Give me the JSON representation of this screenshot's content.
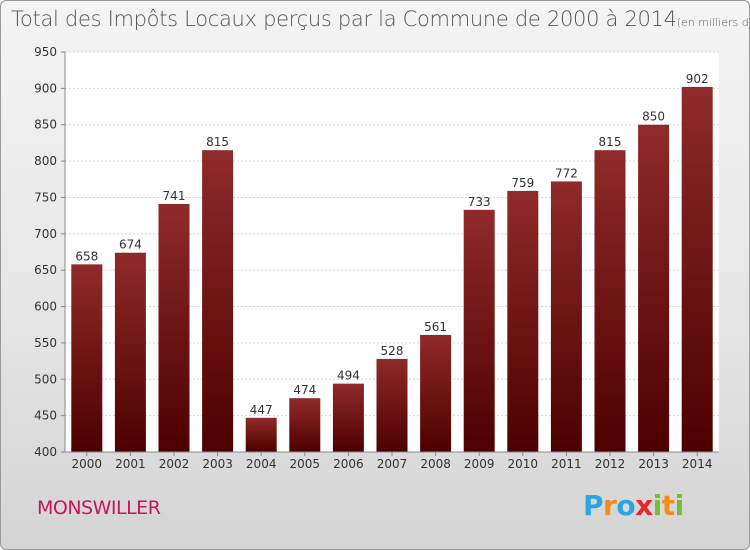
{
  "chart_data": {
    "type": "bar",
    "title": "Total des Impôts Locaux perçus par la Commune de 2000 à 2014",
    "unit_note": "(en milliers d'€)",
    "categories": [
      "2000",
      "2001",
      "2002",
      "2003",
      "2004",
      "2005",
      "2006",
      "2007",
      "2008",
      "2009",
      "2010",
      "2011",
      "2012",
      "2013",
      "2014"
    ],
    "values": [
      658,
      674,
      741,
      815,
      447,
      474,
      494,
      528,
      561,
      733,
      759,
      772,
      815,
      850,
      902
    ],
    "ylim": [
      400,
      950
    ],
    "yticks": [
      400,
      450,
      500,
      550,
      600,
      650,
      700,
      750,
      800,
      850,
      900,
      950
    ],
    "xlabel": "",
    "ylabel": "",
    "grid": true,
    "bar_color": "#8b1a1a"
  },
  "commune": "MONSWILLER",
  "logo": {
    "text": "Proxiti",
    "letters": [
      {
        "ch": "P",
        "color": "#2aa6e0"
      },
      {
        "ch": "r",
        "color": "#f28c1c"
      },
      {
        "ch": "o",
        "color": "#2aa6e0"
      },
      {
        "ch": "x",
        "color": "#e8262d"
      },
      {
        "ch": "i",
        "color": "#7ab83a"
      },
      {
        "ch": "t",
        "color": "#f28c1c"
      },
      {
        "ch": "i",
        "color": "#7ab83a"
      }
    ]
  }
}
